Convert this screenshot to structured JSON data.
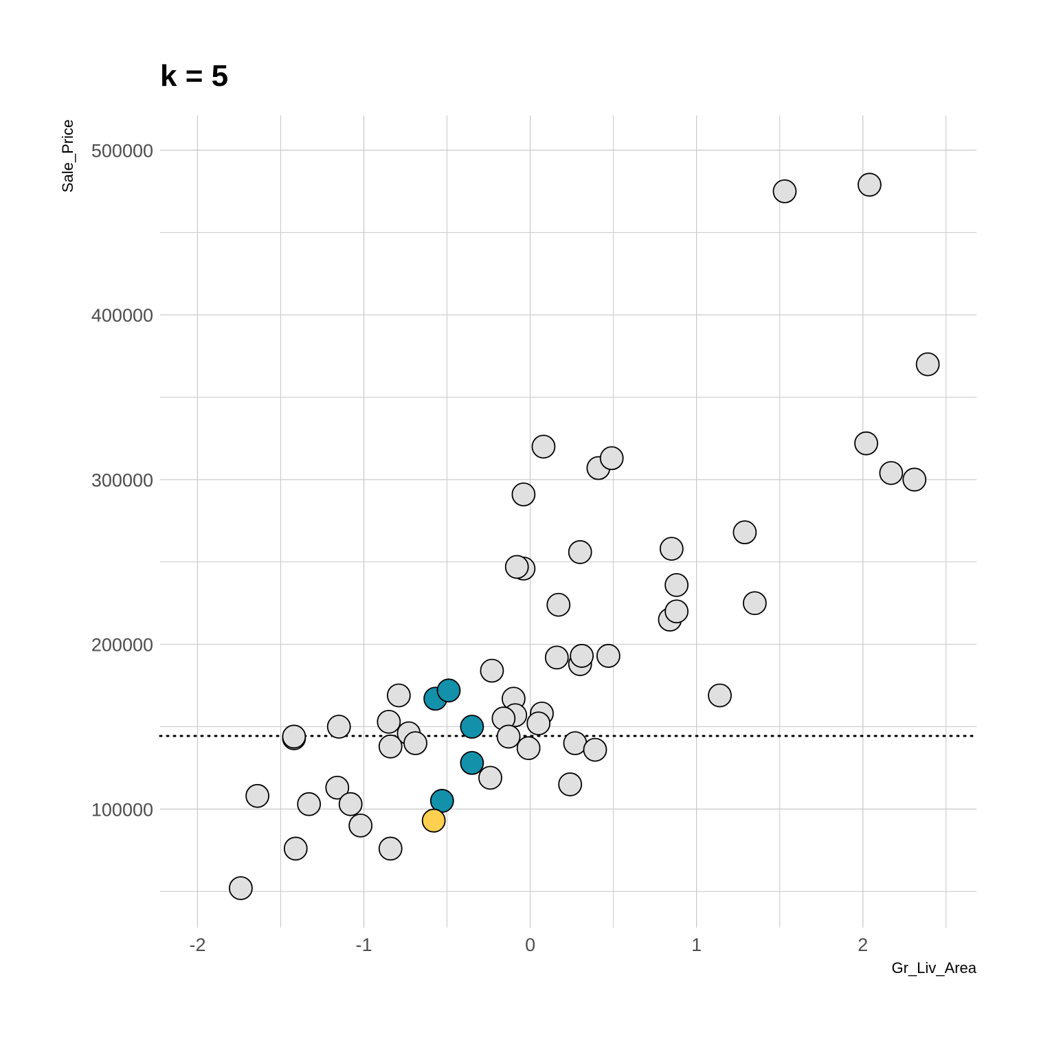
{
  "chart_data": {
    "type": "scatter",
    "title": "k = 5",
    "xlabel": "Gr_Liv_Area",
    "ylabel": "Sale_Price",
    "xlim": [
      -2.225,
      2.6829
    ],
    "ylim": [
      28005,
      521050
    ],
    "x_ticks": [
      -2,
      -1,
      0,
      1,
      2
    ],
    "x_tick_labels": [
      "-2",
      "-1",
      "0",
      "1",
      "2"
    ],
    "x_minor_ticks": [
      -1.5,
      -0.5,
      0.5,
      1.5,
      2.5
    ],
    "y_ticks": [
      100000,
      200000,
      300000,
      400000,
      500000
    ],
    "y_tick_labels": [
      "100000",
      "200000",
      "300000",
      "400000",
      "500000"
    ],
    "y_minor_ticks": [
      50000,
      150000,
      250000,
      350000,
      450000
    ],
    "grid": true,
    "reference_line": {
      "y": 144400,
      "style": "dotted"
    },
    "colors": {
      "default": "#e0e0e0",
      "neighbor": "#1390aa",
      "target": "#ffcf4f",
      "outline": "#000000",
      "reference_line": "#000000"
    },
    "points": [
      {
        "x": -1.74,
        "y": 52000,
        "group": "default"
      },
      {
        "x": -1.64,
        "y": 108000,
        "group": "default"
      },
      {
        "x": -1.42,
        "y": 143000,
        "group": "default"
      },
      {
        "x": -1.42,
        "y": 144000,
        "group": "default"
      },
      {
        "x": -1.41,
        "y": 76000,
        "group": "default"
      },
      {
        "x": -1.33,
        "y": 103000,
        "group": "default"
      },
      {
        "x": -1.15,
        "y": 150000,
        "group": "default"
      },
      {
        "x": -1.16,
        "y": 113000,
        "group": "default"
      },
      {
        "x": -1.08,
        "y": 103000,
        "group": "default"
      },
      {
        "x": -1.02,
        "y": 90000,
        "group": "default"
      },
      {
        "x": -0.85,
        "y": 153000,
        "group": "default"
      },
      {
        "x": -0.84,
        "y": 138000,
        "group": "default"
      },
      {
        "x": -0.84,
        "y": 76000,
        "group": "default"
      },
      {
        "x": -0.79,
        "y": 169000,
        "group": "default"
      },
      {
        "x": -0.73,
        "y": 146000,
        "group": "default"
      },
      {
        "x": -0.69,
        "y": 140000,
        "group": "default"
      },
      {
        "x": -0.57,
        "y": 167000,
        "group": "neighbor"
      },
      {
        "x": -0.49,
        "y": 172000,
        "group": "neighbor"
      },
      {
        "x": -0.35,
        "y": 150000,
        "group": "neighbor"
      },
      {
        "x": -0.35,
        "y": 128000,
        "group": "neighbor"
      },
      {
        "x": -0.53,
        "y": 105000,
        "group": "neighbor"
      },
      {
        "x": -0.58,
        "y": 93000,
        "group": "target"
      },
      {
        "x": -0.23,
        "y": 184000,
        "group": "default"
      },
      {
        "x": -0.24,
        "y": 119000,
        "group": "default"
      },
      {
        "x": -0.1,
        "y": 167000,
        "group": "default"
      },
      {
        "x": -0.09,
        "y": 157000,
        "group": "default"
      },
      {
        "x": -0.16,
        "y": 155000,
        "group": "default"
      },
      {
        "x": -0.13,
        "y": 144000,
        "group": "default"
      },
      {
        "x": -0.04,
        "y": 246000,
        "group": "default"
      },
      {
        "x": -0.08,
        "y": 247000,
        "group": "default"
      },
      {
        "x": -0.04,
        "y": 291000,
        "group": "default"
      },
      {
        "x": -0.01,
        "y": 137000,
        "group": "default"
      },
      {
        "x": 0.07,
        "y": 158000,
        "group": "default"
      },
      {
        "x": 0.05,
        "y": 152000,
        "group": "default"
      },
      {
        "x": 0.08,
        "y": 320000,
        "group": "default"
      },
      {
        "x": 0.17,
        "y": 224000,
        "group": "default"
      },
      {
        "x": 0.16,
        "y": 192000,
        "group": "default"
      },
      {
        "x": 0.24,
        "y": 115000,
        "group": "default"
      },
      {
        "x": 0.27,
        "y": 140000,
        "group": "default"
      },
      {
        "x": 0.3,
        "y": 256000,
        "group": "default"
      },
      {
        "x": 0.3,
        "y": 188000,
        "group": "default"
      },
      {
        "x": 0.31,
        "y": 193000,
        "group": "default"
      },
      {
        "x": 0.39,
        "y": 136000,
        "group": "default"
      },
      {
        "x": 0.41,
        "y": 307000,
        "group": "default"
      },
      {
        "x": 0.49,
        "y": 313000,
        "group": "default"
      },
      {
        "x": 0.47,
        "y": 193000,
        "group": "default"
      },
      {
        "x": 0.84,
        "y": 215000,
        "group": "default"
      },
      {
        "x": 0.85,
        "y": 258000,
        "group": "default"
      },
      {
        "x": 0.88,
        "y": 236000,
        "group": "default"
      },
      {
        "x": 0.88,
        "y": 220000,
        "group": "default"
      },
      {
        "x": 1.14,
        "y": 169000,
        "group": "default"
      },
      {
        "x": 1.29,
        "y": 268000,
        "group": "default"
      },
      {
        "x": 1.35,
        "y": 225000,
        "group": "default"
      },
      {
        "x": 1.53,
        "y": 475000,
        "group": "default"
      },
      {
        "x": 2.04,
        "y": 479000,
        "group": "default"
      },
      {
        "x": 2.02,
        "y": 322000,
        "group": "default"
      },
      {
        "x": 2.17,
        "y": 304000,
        "group": "default"
      },
      {
        "x": 2.31,
        "y": 300000,
        "group": "default"
      },
      {
        "x": 2.39,
        "y": 370000,
        "group": "default"
      }
    ]
  }
}
